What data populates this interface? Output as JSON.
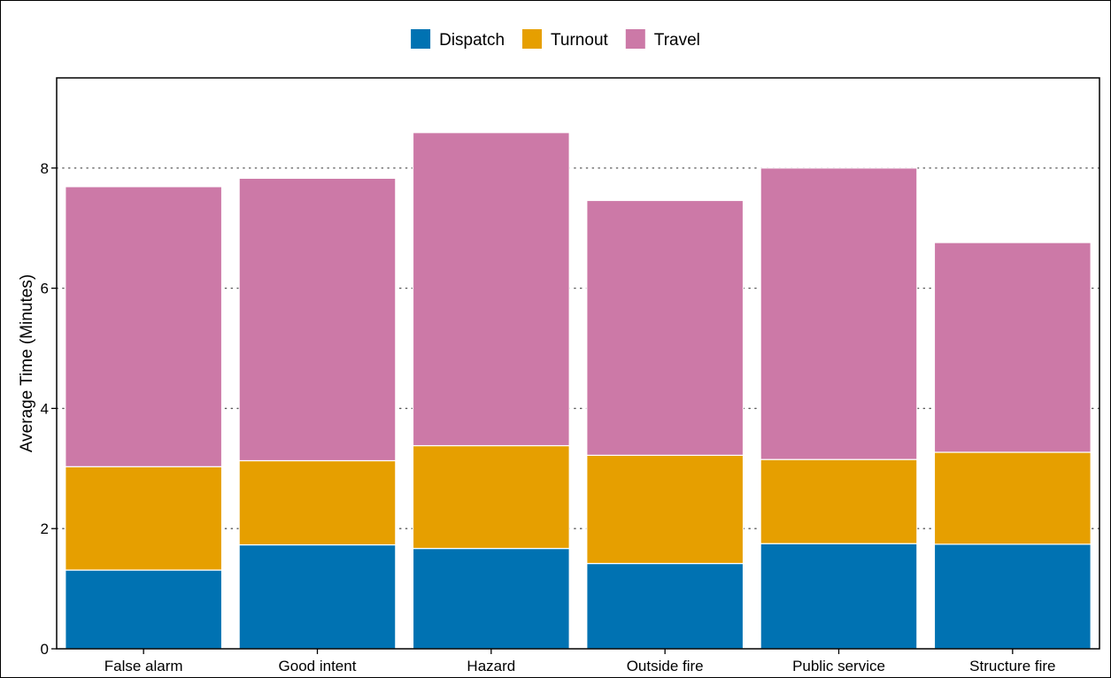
{
  "chart_data": {
    "type": "bar",
    "stacked": true,
    "categories": [
      "False alarm",
      "Good intent",
      "Hazard",
      "Outside fire",
      "Public service",
      "Structure fire"
    ],
    "series": [
      {
        "name": "Dispatch",
        "color": "#0072B2",
        "values": [
          1.31,
          1.73,
          1.67,
          1.42,
          1.75,
          1.74
        ]
      },
      {
        "name": "Turnout",
        "color": "#E69F00",
        "values": [
          1.72,
          1.4,
          1.71,
          1.8,
          1.4,
          1.53
        ]
      },
      {
        "name": "Travel",
        "color": "#CC79A7",
        "values": [
          4.66,
          4.7,
          5.21,
          4.24,
          4.85,
          3.49
        ]
      }
    ],
    "ylabel": "Average Time (Minutes)",
    "xlabel": "",
    "ylim": [
      0,
      9.5
    ],
    "yticks": [
      "0",
      "2",
      "4",
      "6",
      "8"
    ],
    "grid": "horizontal dotted",
    "legend_position": "top"
  }
}
